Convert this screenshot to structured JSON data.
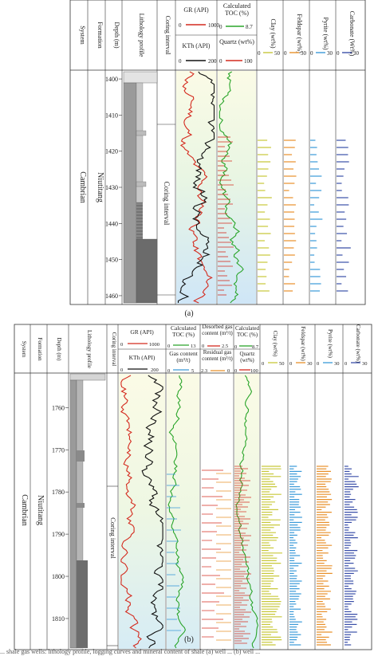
{
  "panel_a": {
    "caption": "(a)",
    "system": "Cambrian",
    "formation": "Niutitang",
    "coring_interval_label": "Coring interval",
    "header": {
      "system": "System",
      "formation": "Formation",
      "depth": "Depth (m)",
      "lithology": "Lithology profile",
      "coring": "Coring interval",
      "gr": {
        "label": "GR (API)",
        "min": "0",
        "max": "1000"
      },
      "kth": {
        "label": "KTh (API)",
        "min": "0",
        "max": "200"
      },
      "toc": {
        "label": "Calculated TOC (%)",
        "min": "0",
        "max": "8.7"
      },
      "quartz": {
        "label": "Quartz (wt%)",
        "min": "0",
        "max": "100"
      },
      "clay": {
        "label": "Clay (wt%)",
        "min": "0",
        "max": "50"
      },
      "feldspar": {
        "label": "Feldspar (wt%)",
        "min": "0",
        "max": "30"
      },
      "pyrite": {
        "label": "Pyrite (wt%)",
        "min": "0",
        "max": "30"
      },
      "carbonate": {
        "label": "Carbonate (Wt%)",
        "min": "0",
        "max": "30"
      }
    },
    "depth_ticks": [
      "1400",
      "1410",
      "1420",
      "1430",
      "1440",
      "1450",
      "1460"
    ],
    "depth_range": [
      1398,
      1462
    ]
  },
  "panel_b": {
    "caption": "(b)",
    "system": "Cambrian",
    "formation": "Niutitang",
    "coring_interval_label": "Coring interval",
    "header": {
      "system": "System",
      "formation": "Formation",
      "depth": "Depth (m)",
      "lithology": "Lithology profile",
      "coring": "Coring interval",
      "gr": {
        "label": "GR (API)",
        "min": "0",
        "max": "1000"
      },
      "kth": {
        "label": "KTh (API)",
        "min": "0",
        "max": "200"
      },
      "toc": {
        "label": "Calculated TOC (%)",
        "min": "0",
        "max": "13"
      },
      "gas": {
        "label": "Gas content (m³/t)",
        "min": "0",
        "max": "5"
      },
      "desorbed": {
        "label": "Desorbed gas content (m³/t)",
        "min": "0",
        "max": "2.5"
      },
      "residual": {
        "label": "Residual gas content (m³/t)",
        "min": "2.3",
        "max": "0"
      },
      "toc2": {
        "label": "Calculated TOC (%)",
        "min": "0",
        "max": "8.7"
      },
      "quartz": {
        "label": "Quartz (wt%)",
        "min": "0",
        "max": "100"
      },
      "clay": {
        "label": "Clay (wt%)",
        "min": "0",
        "max": "50"
      },
      "feldspar": {
        "label": "Feldspar (wt%)",
        "min": "0",
        "max": "30"
      },
      "pyrite": {
        "label": "Pyrite (wt%)",
        "min": "0",
        "max": "30"
      },
      "carbonate": {
        "label": "Carbonate (wt%)",
        "min": "0",
        "max": "30"
      }
    },
    "depth_ticks": [
      "1760",
      "1770",
      "1780",
      "1790",
      "1800",
      "1810"
    ],
    "depth_range": [
      1752,
      1817
    ]
  },
  "footer": "... shale gas wells: lithology profile, logging curves and mineral content of shale (a) well ... (b) well ..."
}
